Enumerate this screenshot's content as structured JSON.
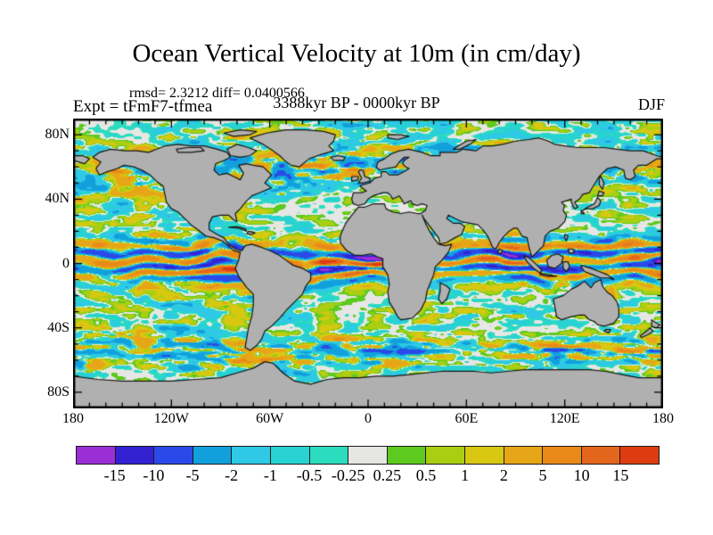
{
  "title": "Ocean Vertical Velocity at 10m (in cm/day)",
  "annotations": {
    "stats": "rmsd= 2.3212 diff= 0.0400566",
    "experiment": "Expt = tFmF7-tfmea",
    "period": "3388kyr BP - 0000kyr BP",
    "season": "DJF"
  },
  "axes": {
    "lat_labels": [
      {
        "text": "80N",
        "lat": 80
      },
      {
        "text": "40N",
        "lat": 40
      },
      {
        "text": "0",
        "lat": 0
      },
      {
        "text": "40S",
        "lat": -40
      },
      {
        "text": "80S",
        "lat": -80
      }
    ],
    "lon_labels": [
      {
        "text": "180",
        "lon": -180
      },
      {
        "text": "120W",
        "lon": -120
      },
      {
        "text": "60W",
        "lon": -60
      },
      {
        "text": "0",
        "lon": 0
      },
      {
        "text": "60E",
        "lon": 60
      },
      {
        "text": "120E",
        "lon": 120
      },
      {
        "text": "180",
        "lon": 180
      }
    ],
    "minor_tick_deg": 10,
    "major_tick_deg_lon": 60,
    "major_tick_deg_lat": 40
  },
  "colorbar": {
    "tick_labels": [
      "-15",
      "-10",
      "-5",
      "-2",
      "-1",
      "-0.5",
      "-0.25",
      "0.25",
      "0.5",
      "1",
      "2",
      "5",
      "10",
      "15"
    ]
  },
  "chart_data": {
    "type": "filled_contour_map",
    "title": "Ocean Vertical Velocity at 10m (in cm/day)",
    "variable": "ocean vertical velocity anomaly",
    "units": "cm/day",
    "depth": "10m",
    "season": "DJF",
    "experiment": "tFmF7-tfmea",
    "period": "3388kyr BP - 0000kyr BP",
    "stats": {
      "rmsd": 2.3212,
      "diff": 0.0400566
    },
    "projection": "equirectangular",
    "lon_range": [
      -180,
      180
    ],
    "lat_range": [
      -90,
      90
    ],
    "contour_levels": [
      -15,
      -10,
      -5,
      -2,
      -1,
      -0.5,
      -0.25,
      0.25,
      0.5,
      1,
      2,
      5,
      10,
      15
    ],
    "palette": [
      "#9a2fd6",
      "#3222d2",
      "#2b49e8",
      "#12a0dc",
      "#2fc8e6",
      "#28d2d2",
      "#2cdcbe",
      "#e6e6e4",
      "#5cca1e",
      "#aace12",
      "#d8c812",
      "#e6a617",
      "#e98a18",
      "#e4661c",
      "#dc3c10"
    ],
    "land_color": "#b0b0b0",
    "coastline_color": "#141414",
    "features": [
      "strong alternating zonal bands of upwelling/downwelling anomalies reaching +/-5 to 15 cm/day along the equatorial Pacific and Atlantic",
      "patchy weak anomalies (+/-0.25 to 2 cm/day, cyan/green mottling with white near-zero patches) over mid-latitude ocean basins",
      "enhanced banded anomalies in the Southern Ocean near 50-60S with a yellow/orange band hugging the Antarctic coastline",
      "noisy strong anomalies in the subpolar North Atlantic, Nordic Seas and Arctic margins",
      "intense purple/blue and orange patches in the western equatorial Pacific near New Guinea and Indonesia"
    ]
  }
}
